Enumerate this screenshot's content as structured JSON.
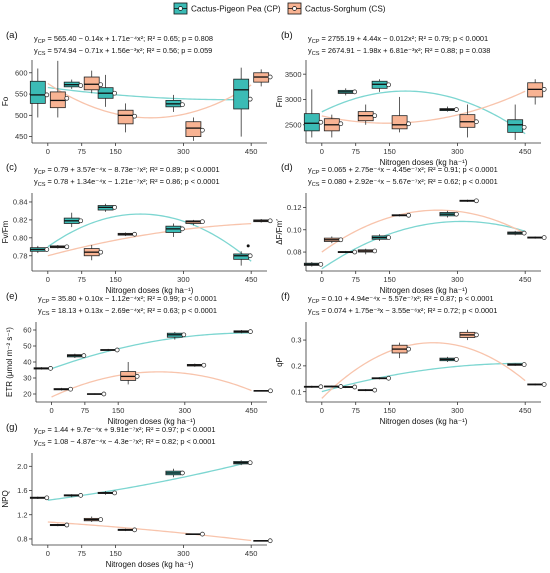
{
  "legend": {
    "items": [
      {
        "label": "Cactus-Pigeon Pea (CP)",
        "color": "#3bbbb5",
        "curve_color": "#7dd6d1"
      },
      {
        "label": "Cactus-Sorghum (CS)",
        "color": "#f8b393",
        "curve_color": "#f8c4ac"
      }
    ],
    "placement": "top-center"
  },
  "chart_data": [
    {
      "type": "box",
      "panel": "(a)",
      "ylabel": "Fo",
      "xlabel": "",
      "categories": [
        "0",
        "75",
        "150",
        "300",
        "450"
      ],
      "ylim": [
        435,
        630
      ],
      "yticks": [
        450,
        500,
        550,
        600
      ],
      "eq_cp": "yCP = 565.40 − 0.14x + 1.71e⁻⁴x²; R² = 0.65; p = 0.808",
      "eq_cs": "yCS = 574.94 − 0.71x + 1.56e⁻³x²; R² = 0.56; p = 0.059",
      "fit_cp": [
        565.4,
        -0.14,
        0.000171
      ],
      "fit_cs": [
        574.94,
        -0.71,
        0.00156
      ],
      "series": [
        {
          "name": "CP",
          "boxes": [
            [
              495,
              528,
              548,
              580,
              610
            ],
            [
              562,
              567,
              572,
              578,
              584
            ],
            [
              520,
              540,
              552,
              565,
              595
            ],
            [
              508,
              520,
              527,
              535,
              548
            ],
            [
              450,
              515,
              560,
              585,
              612
            ]
          ],
          "means": [
            548,
            570,
            552,
            525,
            538
          ]
        },
        {
          "name": "CS",
          "boxes": [
            [
              495,
              518,
              535,
              555,
              628
            ],
            [
              552,
              560,
              573,
              590,
              605
            ],
            [
              460,
              480,
              500,
              512,
              528
            ],
            [
              440,
              450,
              470,
              485,
              495
            ],
            [
              568,
              578,
              590,
              600,
              608
            ]
          ],
          "means": [
            540,
            572,
            498,
            465,
            590
          ]
        }
      ]
    },
    {
      "type": "box",
      "panel": "(b)",
      "ylabel": "Fm",
      "xlabel": "Nitrogen doses (kg ha⁻¹)",
      "categories": [
        "0",
        "75",
        "150",
        "300",
        "450"
      ],
      "ylim": [
        2140,
        3780
      ],
      "yticks": [
        2500,
        3000,
        3500
      ],
      "eq_cp": "yCP = 2755.19 + 4.44x − 0.012x²; R² = 0.79; p < 0.0001",
      "eq_cs": "yCS = 2674.91 − 1.98x + 6.81e⁻³x²; R² = 0.88; p = 0.038",
      "fit_cp": [
        2755.19,
        4.44,
        -0.012
      ],
      "fit_cs": [
        2674.91,
        -1.98,
        0.00681
      ],
      "series": [
        {
          "name": "CP",
          "boxes": [
            [
              2250,
              2380,
              2530,
              2720,
              3200
            ],
            [
              3080,
              3120,
              3150,
              3180,
              3220
            ],
            [
              3150,
              3220,
              3300,
              3360,
              3400
            ],
            [
              2760,
              2780,
              2800,
              2820,
              2860
            ],
            [
              2200,
              2350,
              2500,
              2600,
              2900
            ]
          ],
          "means": [
            2550,
            3150,
            3290,
            2800,
            2450
          ]
        },
        {
          "name": "CS",
          "boxes": [
            [
              2250,
              2380,
              2500,
              2620,
              2700
            ],
            [
              2500,
              2580,
              2680,
              2760,
              2900
            ],
            [
              2350,
              2420,
              2500,
              2680,
              3050
            ],
            [
              2250,
              2450,
              2560,
              2700,
              2900
            ],
            [
              2900,
              3050,
              3200,
              3330,
              3400
            ]
          ],
          "means": [
            2520,
            2680,
            2520,
            2560,
            3200
          ]
        }
      ]
    },
    {
      "type": "box",
      "panel": "(c)",
      "ylabel": "Fv/Fm",
      "xlabel": "Nitrogen doses (kg ha⁻¹)",
      "categories": [
        "0",
        "75",
        "150",
        "300",
        "450"
      ],
      "ylim": [
        0.763,
        0.85
      ],
      "yticks": [
        0.78,
        0.8,
        0.82,
        0.84
      ],
      "eq_cp": "yCP = 0.79 + 3.57e⁻⁴x − 8.73e⁻⁷x²; R² = 0.89; p < 0.0001",
      "eq_cs": "yCS = 0.78 + 1.34e⁻⁴x − 1.21e⁻⁷x²; R² = 0.86; p < 0.0001",
      "fit_cp": [
        0.79,
        0.000357,
        -8.73e-07
      ],
      "fit_cs": [
        0.78,
        0.000134,
        -1.21e-07
      ],
      "series": [
        {
          "name": "CP",
          "boxes": [
            [
              0.783,
              0.785,
              0.787,
              0.789,
              0.791
            ],
            [
              0.812,
              0.816,
              0.819,
              0.822,
              0.828
            ],
            [
              0.829,
              0.831,
              0.834,
              0.836,
              0.838
            ],
            [
              0.801,
              0.806,
              0.81,
              0.813,
              0.816
            ],
            [
              0.769,
              0.776,
              0.78,
              0.782,
              0.785
            ]
          ],
          "means": [
            0.787,
            0.819,
            0.834,
            0.81,
            0.78
          ],
          "outliers": [
            [
              450,
              0.791
            ]
          ]
        },
        {
          "name": "CS",
          "boxes": [
            [
              0.788,
              0.789,
              0.79,
              0.791,
              0.792
            ],
            [
              0.775,
              0.78,
              0.784,
              0.788,
              0.792
            ],
            [
              0.802,
              0.803,
              0.804,
              0.805,
              0.806
            ],
            [
              0.814,
              0.816,
              0.818,
              0.819,
              0.82
            ],
            [
              0.817,
              0.818,
              0.819,
              0.82,
              0.821
            ]
          ],
          "means": [
            0.79,
            0.784,
            0.804,
            0.818,
            0.819
          ]
        }
      ]
    },
    {
      "type": "box",
      "panel": "(d)",
      "ylabel": "ΔF/Fm′",
      "xlabel": "Nitrogen doses (kg ha⁻¹)",
      "categories": [
        "0",
        "75",
        "150",
        "300",
        "450"
      ],
      "ylim": [
        0.063,
        0.133
      ],
      "yticks": [
        0.08,
        0.1,
        0.12
      ],
      "eq_cp": "yCP = 0.065 + 2.75e⁻⁴x − 4.45e⁻⁷x²; R² = 0.91; p < 0.0001",
      "eq_cs": "yCS = 0.080 + 2.92e⁻⁴x − 5.67e⁻⁷x²; R² = 0.62; p < 0.0001",
      "fit_cp": [
        0.065,
        0.000275,
        -4.45e-07
      ],
      "fit_cs": [
        0.08,
        0.000292,
        -5.67e-07
      ],
      "series": [
        {
          "name": "CP",
          "boxes": [
            [
              0.067,
              0.068,
              0.069,
              0.07,
              0.071
            ],
            [
              0.079,
              0.0795,
              0.08,
              0.0805,
              0.081
            ],
            [
              0.09,
              0.0915,
              0.093,
              0.0945,
              0.096
            ],
            [
              0.111,
              0.1125,
              0.114,
              0.1155,
              0.117
            ],
            [
              0.095,
              0.096,
              0.097,
              0.098,
              0.099
            ]
          ],
          "means": [
            0.069,
            0.08,
            0.093,
            0.114,
            0.097
          ]
        },
        {
          "name": "CS",
          "boxes": [
            [
              0.088,
              0.0895,
              0.091,
              0.0925,
              0.094
            ],
            [
              0.078,
              0.08,
              0.081,
              0.082,
              0.083
            ],
            [
              0.112,
              0.1125,
              0.113,
              0.1135,
              0.114
            ],
            [
              0.125,
              0.1255,
              0.126,
              0.1265,
              0.127
            ],
            [
              0.092,
              0.0925,
              0.093,
              0.0935,
              0.094
            ]
          ],
          "means": [
            0.091,
            0.081,
            0.113,
            0.126,
            0.093
          ]
        }
      ]
    },
    {
      "type": "box",
      "panel": "(e)",
      "ylabel": "ETR (μmol m⁻² s⁻¹)",
      "xlabel": "Nitrogen doses (kg ha⁻¹)",
      "categories": [
        "0",
        "75",
        "150",
        "300",
        "450"
      ],
      "ylim": [
        15,
        65
      ],
      "yticks": [
        20,
        30,
        40,
        50,
        60
      ],
      "eq_cp": "yCP = 35.80 + 0.10x − 1.12e⁻⁴x²; R² = 0.99; p < 0.0001",
      "eq_cs": "yCS = 18.13 + 0.13x − 2.69e⁻⁴x²; R² = 0.63; p < 0.0001",
      "fit_cp": [
        35.8,
        0.1,
        -0.000112
      ],
      "fit_cs": [
        18.13,
        0.13,
        -0.000269
      ],
      "series": [
        {
          "name": "CP",
          "boxes": [
            [
              35.2,
              35.6,
              36,
              36.4,
              36.8
            ],
            [
              42.5,
              43.2,
              44,
              44.6,
              45.2
            ],
            [
              46.8,
              47.2,
              47.5,
              47.8,
              48.2
            ],
            [
              54,
              55.5,
              57,
              58,
              58.8
            ],
            [
              58,
              58.5,
              59,
              59.5,
              60
            ]
          ],
          "means": [
            36,
            44,
            47.5,
            57,
            59
          ]
        },
        {
          "name": "CS",
          "boxes": [
            [
              22.2,
              22.6,
              23,
              23.4,
              23.8
            ],
            [
              19.6,
              19.8,
              20,
              20.2,
              20.4
            ],
            [
              26,
              28.5,
              31,
              34,
              40
            ],
            [
              37,
              37.5,
              38,
              38.5,
              39
            ],
            [
              21.6,
              21.8,
              22,
              22.2,
              22.4
            ]
          ],
          "means": [
            23,
            20,
            31,
            38,
            22
          ]
        }
      ]
    },
    {
      "type": "box",
      "panel": "(f)",
      "ylabel": "qP",
      "xlabel": "Nitrogen doses (kg ha⁻¹)",
      "categories": [
        "0",
        "75",
        "150",
        "300",
        "450"
      ],
      "ylim": [
        0.06,
        0.37
      ],
      "yticks": [
        0.1,
        0.2,
        0.3
      ],
      "eq_cp": "yCP = 0.10 + 4.94e⁻⁴x − 5.57e⁻⁷x²; R² = 0.87; p < 0.0001",
      "eq_cs": "yCS = 0.074 + 1.75e⁻³x − 3.55e⁻⁶x²; R² = 0.72; p < 0.0001",
      "fit_cp": [
        0.1,
        0.000494,
        -5.57e-07
      ],
      "fit_cs": [
        0.074,
        0.00175,
        -3.55e-06
      ],
      "series": [
        {
          "name": "CP",
          "boxes": [
            [
              0.115,
              0.117,
              0.119,
              0.121,
              0.123
            ],
            [
              0.114,
              0.116,
              0.118,
              0.12,
              0.122
            ],
            [
              0.148,
              0.15,
              0.152,
              0.154,
              0.156
            ],
            [
              0.215,
              0.22,
              0.225,
              0.23,
              0.235
            ],
            [
              0.2,
              0.202,
              0.205,
              0.208,
              0.21
            ]
          ],
          "means": [
            0.119,
            0.118,
            0.152,
            0.225,
            0.205
          ]
        },
        {
          "name": "CS",
          "boxes": [
            [
              0.116,
              0.118,
              0.12,
              0.122,
              0.124
            ],
            [
              0.102,
              0.104,
              0.106,
              0.108,
              0.11
            ],
            [
              0.23,
              0.25,
              0.265,
              0.28,
              0.29
            ],
            [
              0.3,
              0.31,
              0.32,
              0.33,
              0.34
            ],
            [
              0.124,
              0.126,
              0.128,
              0.13,
              0.132
            ]
          ],
          "means": [
            0.12,
            0.106,
            0.265,
            0.32,
            0.128
          ]
        }
      ]
    },
    {
      "type": "box",
      "panel": "(g)",
      "ylabel": "NPQ",
      "xlabel": "Nitrogen doses (kg ha⁻¹)",
      "categories": [
        "0",
        "75",
        "150",
        "300",
        "450"
      ],
      "ylim": [
        0.7,
        2.22
      ],
      "yticks": [
        0.8,
        1.2,
        1.6,
        2.0
      ],
      "eq_cp": "yCP = 1.44 + 9.7e⁻⁴x + 9.91e⁻⁷x²; R² = 0.97; p < 0.0001",
      "eq_cs": "yCS = 1.08 − 4.87e⁻⁴x − 4.3e⁻⁷x²; R² = 0.82; p < 0.0001",
      "fit_cp": [
        1.44,
        0.00097,
        9.91e-07
      ],
      "fit_cs": [
        1.08,
        -0.000487,
        -4.3e-07
      ],
      "series": [
        {
          "name": "CP",
          "boxes": [
            [
              1.46,
              1.47,
              1.48,
              1.49,
              1.5
            ],
            [
              1.49,
              1.51,
              1.52,
              1.53,
              1.54
            ],
            [
              1.53,
              1.55,
              1.56,
              1.57,
              1.59
            ],
            [
              1.82,
              1.86,
              1.89,
              1.92,
              1.96
            ],
            [
              2.02,
              2.04,
              2.06,
              2.08,
              2.1
            ]
          ],
          "means": [
            1.48,
            1.52,
            1.56,
            1.89,
            2.06
          ]
        },
        {
          "name": "CS",
          "boxes": [
            [
              1.01,
              1.02,
              1.03,
              1.04,
              1.05
            ],
            [
              1.08,
              1.1,
              1.12,
              1.14,
              1.17
            ],
            [
              0.93,
              0.94,
              0.95,
              0.96,
              0.97
            ],
            [
              0.87,
              0.875,
              0.88,
              0.885,
              0.89
            ],
            [
              0.76,
              0.765,
              0.77,
              0.775,
              0.78
            ]
          ],
          "means": [
            1.03,
            1.12,
            0.95,
            0.88,
            0.77
          ]
        }
      ]
    }
  ]
}
